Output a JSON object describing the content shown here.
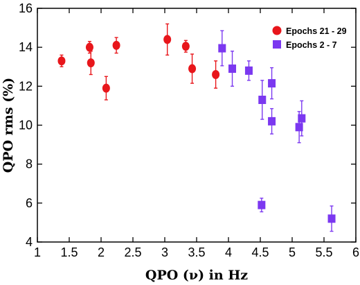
{
  "chart_data": {
    "type": "scatter",
    "xlabel": "QPO (ν) in Hz",
    "ylabel": "QPO rms (%)",
    "xlim": [
      1,
      6
    ],
    "ylim": [
      4,
      16
    ],
    "xticks": [
      "1",
      "1.5",
      "2",
      "2.5",
      "3",
      "3.5",
      "4",
      "4.5",
      "5",
      "5.5",
      "6"
    ],
    "yticks": [
      "4",
      "6",
      "8",
      "10",
      "12",
      "14",
      "16"
    ],
    "legend_position": "top-right",
    "series": [
      {
        "name": "Epochs 21 - 29",
        "marker": "circle",
        "color": "#e8161b",
        "points": [
          {
            "x": 1.38,
            "y": 13.3,
            "err": 0.3
          },
          {
            "x": 1.82,
            "y": 14.0,
            "err": 0.3
          },
          {
            "x": 1.84,
            "y": 13.2,
            "err": 0.6
          },
          {
            "x": 2.08,
            "y": 11.9,
            "err": 0.6
          },
          {
            "x": 2.24,
            "y": 14.1,
            "err": 0.4
          },
          {
            "x": 3.04,
            "y": 14.4,
            "err": 0.8
          },
          {
            "x": 3.33,
            "y": 14.05,
            "err": 0.3
          },
          {
            "x": 3.43,
            "y": 12.9,
            "err": 0.75
          },
          {
            "x": 3.8,
            "y": 12.6,
            "err": 0.7
          }
        ]
      },
      {
        "name": "Epochs 2 - 7",
        "marker": "square",
        "color": "#7b38f0",
        "points": [
          {
            "x": 3.9,
            "y": 13.95,
            "err": 0.9
          },
          {
            "x": 4.06,
            "y": 12.9,
            "err": 0.9
          },
          {
            "x": 4.32,
            "y": 12.8,
            "err": 0.5
          },
          {
            "x": 4.53,
            "y": 11.3,
            "err": 1.0
          },
          {
            "x": 4.68,
            "y": 12.15,
            "err": 0.8
          },
          {
            "x": 4.68,
            "y": 10.2,
            "err": 0.65
          },
          {
            "x": 4.52,
            "y": 5.9,
            "err": 0.35
          },
          {
            "x": 5.11,
            "y": 9.9,
            "err": 0.8
          },
          {
            "x": 5.15,
            "y": 10.35,
            "err": 0.9
          },
          {
            "x": 5.62,
            "y": 5.2,
            "err": 0.65
          }
        ]
      }
    ]
  }
}
